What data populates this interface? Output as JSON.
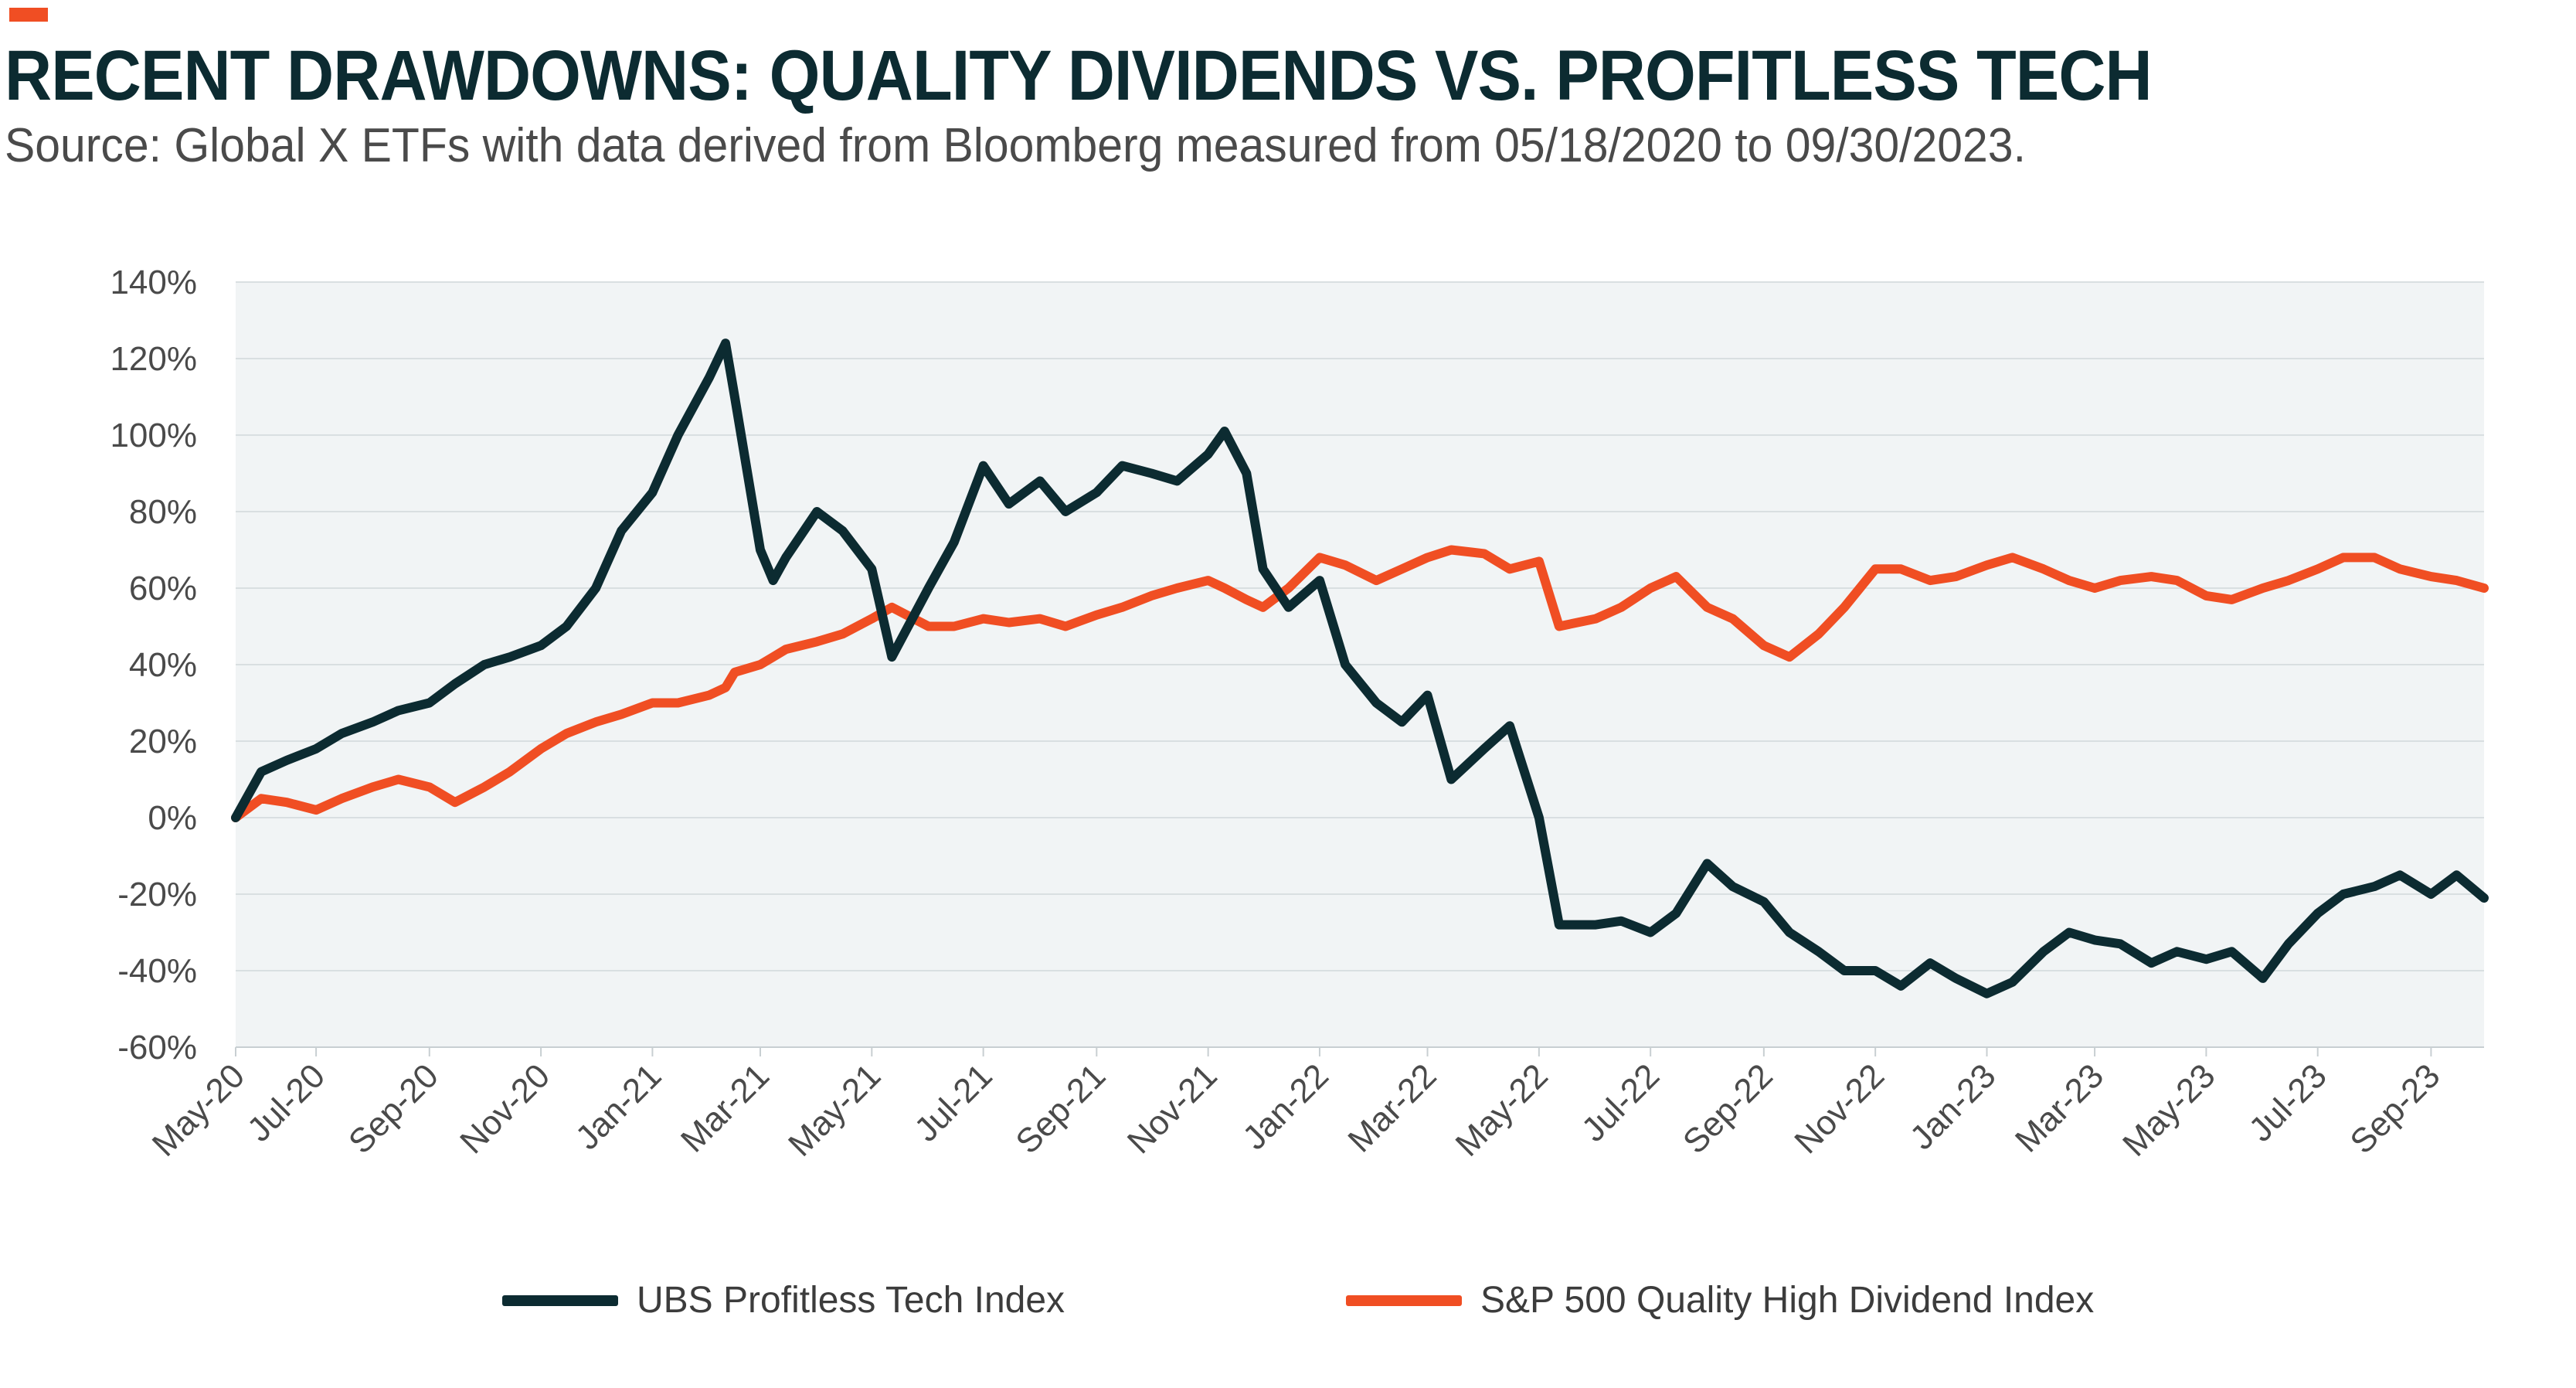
{
  "header": {
    "title": "RECENT DRAWDOWNS: QUALITY DIVIDENDS VS. PROFITLESS TECH",
    "subtitle": "Source: Global X ETFs with data derived from Bloomberg measured from 05/18/2020 to 09/30/2023.",
    "accent_color": "#f04e23"
  },
  "chart_data": {
    "type": "line",
    "x_tick_labels": [
      "May-20",
      "Jul-20",
      "Sep-20",
      "Nov-20",
      "Jan-21",
      "Mar-21",
      "May-21",
      "Jul-21",
      "Sep-21",
      "Nov-21",
      "Jan-22",
      "Mar-22",
      "May-22",
      "Jul-22",
      "Sep-22",
      "Nov-22",
      "Jan-23",
      "Mar-23",
      "May-23",
      "Jul-23",
      "Sep-23"
    ],
    "y_tick_labels": [
      "140%",
      "120%",
      "100%",
      "80%",
      "60%",
      "40%",
      "20%",
      "0%",
      "-20%",
      "-40%",
      "-60%"
    ],
    "ylim": [
      -60,
      140
    ],
    "y_unit": "%",
    "grid": true,
    "legend_position": "bottom",
    "x": [
      "2020-05-18",
      "2020-06-01",
      "2020-06-15",
      "2020-07-01",
      "2020-07-15",
      "2020-08-01",
      "2020-08-15",
      "2020-09-01",
      "2020-09-15",
      "2020-10-01",
      "2020-10-15",
      "2020-11-01",
      "2020-11-15",
      "2020-12-01",
      "2020-12-15",
      "2021-01-01",
      "2021-01-15",
      "2021-02-01",
      "2021-02-10",
      "2021-02-15",
      "2021-03-01",
      "2021-03-08",
      "2021-03-15",
      "2021-04-01",
      "2021-04-15",
      "2021-05-01",
      "2021-05-12",
      "2021-06-01",
      "2021-06-15",
      "2021-07-01",
      "2021-07-15",
      "2021-08-01",
      "2021-08-15",
      "2021-09-01",
      "2021-09-15",
      "2021-10-01",
      "2021-10-15",
      "2021-11-01",
      "2021-11-10",
      "2021-11-22",
      "2021-12-01",
      "2021-12-15",
      "2022-01-01",
      "2022-01-15",
      "2022-02-01",
      "2022-02-15",
      "2022-03-01",
      "2022-03-14",
      "2022-04-01",
      "2022-04-15",
      "2022-05-01",
      "2022-05-12",
      "2022-06-01",
      "2022-06-15",
      "2022-07-01",
      "2022-07-15",
      "2022-08-01",
      "2022-08-15",
      "2022-09-01",
      "2022-09-15",
      "2022-10-01",
      "2022-10-15",
      "2022-11-01",
      "2022-11-15",
      "2022-12-01",
      "2022-12-15",
      "2023-01-01",
      "2023-01-15",
      "2023-02-01",
      "2023-02-15",
      "2023-03-01",
      "2023-03-15",
      "2023-04-01",
      "2023-04-15",
      "2023-05-01",
      "2023-05-15",
      "2023-06-01",
      "2023-06-15",
      "2023-07-01",
      "2023-07-15",
      "2023-08-01",
      "2023-08-15",
      "2023-09-01",
      "2023-09-15",
      "2023-09-30"
    ],
    "series": [
      {
        "name": "UBS Profitless Tech Index",
        "color": "#0c2b31",
        "values": [
          0,
          12,
          15,
          18,
          22,
          25,
          28,
          30,
          35,
          40,
          42,
          45,
          50,
          60,
          75,
          85,
          100,
          115,
          124,
          110,
          70,
          62,
          68,
          80,
          75,
          65,
          42,
          60,
          72,
          92,
          82,
          88,
          80,
          85,
          92,
          90,
          88,
          95,
          101,
          90,
          65,
          55,
          62,
          40,
          30,
          25,
          32,
          10,
          18,
          24,
          0,
          -28,
          -28,
          -27,
          -30,
          -25,
          -12,
          -18,
          -22,
          -30,
          -35,
          -40,
          -40,
          -44,
          -38,
          -42,
          -46,
          -43,
          -35,
          -30,
          -32,
          -33,
          -38,
          -35,
          -37,
          -35,
          -42,
          -33,
          -25,
          -20,
          -18,
          -15,
          -20,
          -15,
          -21
        ]
      },
      {
        "name": "S&P 500 Quality High Dividend Index",
        "color": "#f04e23",
        "values": [
          0,
          5,
          4,
          2,
          5,
          8,
          10,
          8,
          4,
          8,
          12,
          18,
          22,
          25,
          27,
          30,
          30,
          32,
          34,
          38,
          40,
          42,
          44,
          46,
          48,
          52,
          55,
          50,
          50,
          52,
          51,
          52,
          50,
          53,
          55,
          58,
          60,
          62,
          60,
          57,
          55,
          60,
          68,
          66,
          62,
          65,
          68,
          70,
          69,
          65,
          67,
          50,
          52,
          55,
          60,
          63,
          55,
          52,
          45,
          42,
          48,
          55,
          65,
          65,
          62,
          63,
          66,
          68,
          65,
          62,
          60,
          62,
          63,
          62,
          58,
          57,
          60,
          62,
          65,
          68,
          68,
          65,
          63,
          62,
          60
        ]
      }
    ]
  },
  "legend": {
    "items": [
      {
        "label": "UBS Profitless Tech Index",
        "color": "#0c2b31"
      },
      {
        "label": "S&P 500 Quality High Dividend Index",
        "color": "#f04e23"
      }
    ]
  }
}
